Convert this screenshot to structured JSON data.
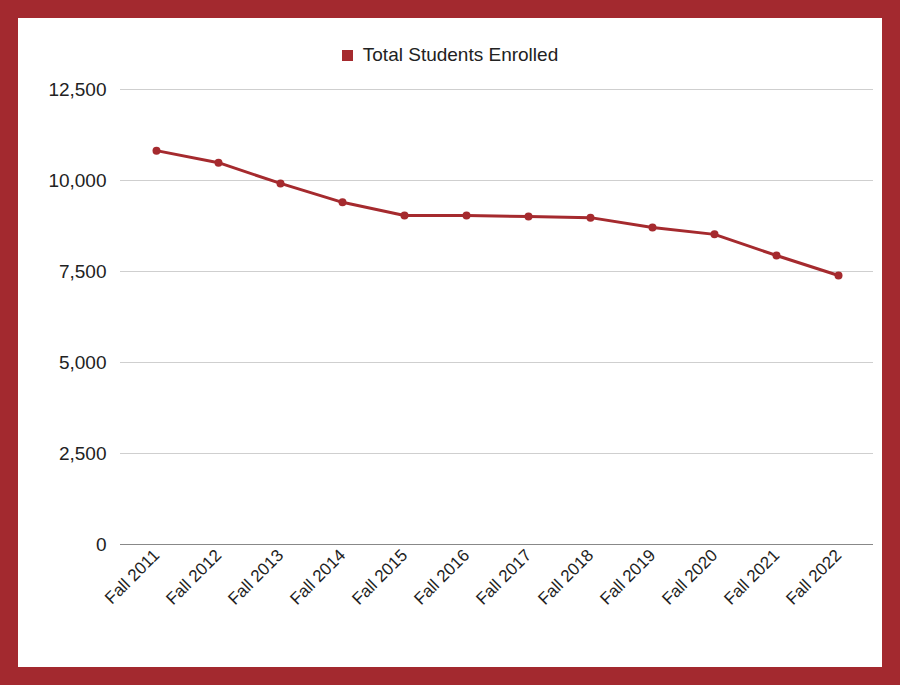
{
  "chart_data": {
    "type": "line",
    "categories": [
      "Fall 2011",
      "Fall 2012",
      "Fall 2013",
      "Fall 2014",
      "Fall 2015",
      "Fall 2016",
      "Fall 2017",
      "Fall 2018",
      "Fall 2019",
      "Fall 2020",
      "Fall 2021",
      "Fall 2022"
    ],
    "series": [
      {
        "name": "Total Students Enrolled",
        "color": "#a52a2e",
        "values": [
          10820,
          10490,
          9920,
          9400,
          9040,
          9040,
          9010,
          8980,
          8710,
          8520,
          7940,
          7390
        ]
      }
    ],
    "ylim": [
      0,
      12500
    ],
    "yticks": [
      0,
      {
        "value": 2500,
        "label": "2,500"
      },
      {
        "value": 5000,
        "label": "5,000"
      },
      {
        "value": 7500,
        "label": "7,500"
      },
      {
        "value": 10000,
        "label": "10,000"
      },
      {
        "value": 12500,
        "label": "12,500"
      }
    ],
    "grid": true,
    "legend": "top",
    "marker": "circle"
  }
}
